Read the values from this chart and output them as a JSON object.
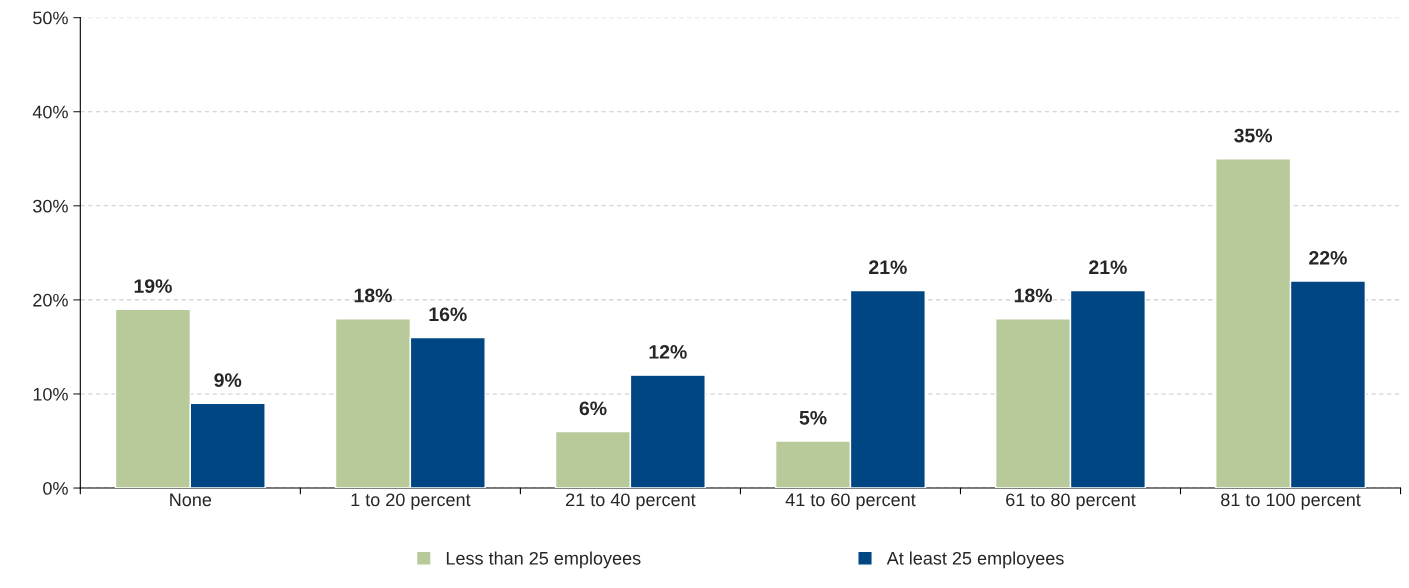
{
  "chart_data": {
    "type": "bar",
    "categories": [
      "None",
      "1 to 20 percent",
      "21 to 40 percent",
      "41 to 60 percent",
      "61 to 80 percent",
      "81 to 100 percent"
    ],
    "series": [
      {
        "name": "Less than 25 employees",
        "color": "#b8c99a",
        "values": [
          19,
          18,
          6,
          5,
          18,
          35
        ],
        "value_labels": [
          "19%",
          "18%",
          "6%",
          "5%",
          "18%",
          "35%"
        ]
      },
      {
        "name": "At least 25 employees",
        "color": "#004682",
        "values": [
          9,
          16,
          12,
          21,
          21,
          22
        ],
        "value_labels": [
          "9%",
          "16%",
          "12%",
          "21%",
          "21%",
          "22%"
        ]
      }
    ],
    "ylim": [
      0,
      50
    ],
    "yticks": [
      {
        "value": 0,
        "label": "0%"
      },
      {
        "value": 10,
        "label": "10%"
      },
      {
        "value": 20,
        "label": "20%"
      },
      {
        "value": 30,
        "label": "30%"
      },
      {
        "value": 40,
        "label": "40%"
      },
      {
        "value": 50,
        "label": "50%"
      }
    ],
    "grid": "y",
    "legend": "bottom"
  }
}
